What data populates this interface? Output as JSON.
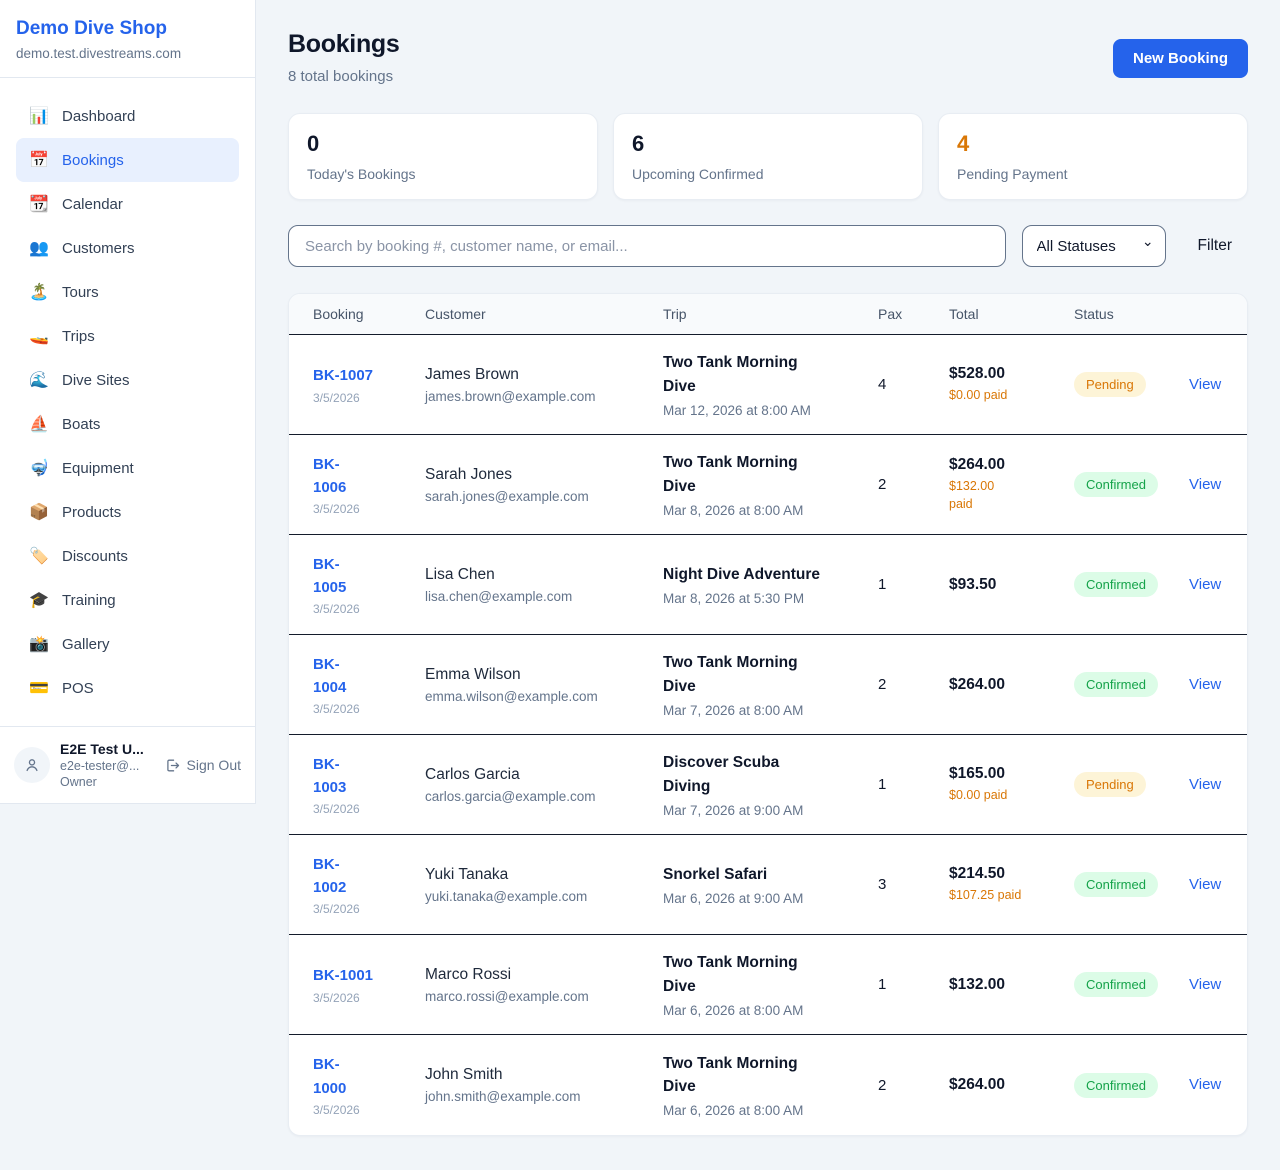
{
  "colors": {
    "accent_blue": "#2563eb",
    "pending_orange": "#d97706",
    "confirmed_green": "#16a34a",
    "page_background": "#f1f5f9"
  },
  "sidebar": {
    "shop_name": "Demo Dive Shop",
    "shop_domain": "demo.test.divestreams.com",
    "items": [
      {
        "slug": "dashboard",
        "icon": "📊",
        "label": "Dashboard",
        "active": false
      },
      {
        "slug": "bookings",
        "icon": "📅",
        "label": "Bookings",
        "active": true
      },
      {
        "slug": "calendar",
        "icon": "📆",
        "label": "Calendar",
        "active": false
      },
      {
        "slug": "customers",
        "icon": "👥",
        "label": "Customers",
        "active": false
      },
      {
        "slug": "tours",
        "icon": "🏝️",
        "label": "Tours",
        "active": false
      },
      {
        "slug": "trips",
        "icon": "🚤",
        "label": "Trips",
        "active": false
      },
      {
        "slug": "dive-sites",
        "icon": "🌊",
        "label": "Dive Sites",
        "active": false
      },
      {
        "slug": "boats",
        "icon": "⛵",
        "label": "Boats",
        "active": false
      },
      {
        "slug": "equipment",
        "icon": "🤿",
        "label": "Equipment",
        "active": false
      },
      {
        "slug": "products",
        "icon": "📦",
        "label": "Products",
        "active": false
      },
      {
        "slug": "discounts",
        "icon": "🏷️",
        "label": "Discounts",
        "active": false
      },
      {
        "slug": "training",
        "icon": "🎓",
        "label": "Training",
        "active": false
      },
      {
        "slug": "gallery",
        "icon": "📸",
        "label": "Gallery",
        "active": false
      },
      {
        "slug": "pos",
        "icon": "💳",
        "label": "POS",
        "active": false
      }
    ],
    "user": {
      "name": "E2E Test U...",
      "email": "e2e-tester@...",
      "role": "Owner",
      "signout_label": "Sign Out"
    }
  },
  "header": {
    "title": "Bookings",
    "subtitle": "8 total bookings",
    "new_booking_label": "New Booking"
  },
  "stats": {
    "0": {
      "value": "0",
      "label": "Today's Bookings"
    },
    "1": {
      "value": "6",
      "label": "Upcoming Confirmed"
    },
    "2": {
      "value": "4",
      "label": "Pending Payment"
    }
  },
  "filters": {
    "search_placeholder": "Search by booking #, customer name, or email...",
    "status_selected": "All Statuses",
    "filter_label": "Filter"
  },
  "table": {
    "columns": {
      "0": "Booking",
      "1": "Customer",
      "2": "Trip",
      "3": "Pax",
      "4": "Total",
      "5": "Status"
    },
    "rows": [
      {
        "id": "BK-1007",
        "booked_date": "3/5/2026",
        "customer_name": "James Brown",
        "customer_email": "james.brown@example.com",
        "trip_name": "Two Tank Morning\nDive",
        "trip_date": "Mar 12, 2026 at 8:00 AM",
        "pax": "4",
        "total": "$528.00",
        "paid": "$0.00 paid",
        "status": "Pending",
        "status_type": "pending",
        "view_label": "View"
      },
      {
        "id": "BK-\n1006",
        "booked_date": "3/5/2026",
        "customer_name": "Sarah Jones",
        "customer_email": "sarah.jones@example.com",
        "trip_name": "Two Tank Morning\nDive",
        "trip_date": "Mar 8, 2026 at 8:00 AM",
        "pax": "2",
        "total": "$264.00",
        "paid": "$132.00\npaid",
        "status": "Confirmed",
        "status_type": "confirmed",
        "view_label": "View"
      },
      {
        "id": "BK-\n1005",
        "booked_date": "3/5/2026",
        "customer_name": "Lisa Chen",
        "customer_email": "lisa.chen@example.com",
        "trip_name": "Night Dive Adventure",
        "trip_date": "Mar 8, 2026 at 5:30 PM",
        "pax": "1",
        "total": "$93.50",
        "paid": "",
        "status": "Confirmed",
        "status_type": "confirmed",
        "view_label": "View"
      },
      {
        "id": "BK-\n1004",
        "booked_date": "3/5/2026",
        "customer_name": "Emma Wilson",
        "customer_email": "emma.wilson@example.com",
        "trip_name": "Two Tank Morning\nDive",
        "trip_date": "Mar 7, 2026 at 8:00 AM",
        "pax": "2",
        "total": "$264.00",
        "paid": "",
        "status": "Confirmed",
        "status_type": "confirmed",
        "view_label": "View"
      },
      {
        "id": "BK-\n1003",
        "booked_date": "3/5/2026",
        "customer_name": "Carlos Garcia",
        "customer_email": "carlos.garcia@example.com",
        "trip_name": "Discover Scuba\nDiving",
        "trip_date": "Mar 7, 2026 at 9:00 AM",
        "pax": "1",
        "total": "$165.00",
        "paid": "$0.00 paid",
        "status": "Pending",
        "status_type": "pending",
        "view_label": "View"
      },
      {
        "id": "BK-\n1002",
        "booked_date": "3/5/2026",
        "customer_name": "Yuki Tanaka",
        "customer_email": "yuki.tanaka@example.com",
        "trip_name": "Snorkel Safari",
        "trip_date": "Mar 6, 2026 at 9:00 AM",
        "pax": "3",
        "total": "$214.50",
        "paid": "$107.25 paid",
        "status": "Confirmed",
        "status_type": "confirmed",
        "view_label": "View"
      },
      {
        "id": "BK-1001",
        "booked_date": "3/5/2026",
        "customer_name": "Marco Rossi",
        "customer_email": "marco.rossi@example.com",
        "trip_name": "Two Tank Morning\nDive",
        "trip_date": "Mar 6, 2026 at 8:00 AM",
        "pax": "1",
        "total": "$132.00",
        "paid": "",
        "status": "Confirmed",
        "status_type": "confirmed",
        "view_label": "View"
      },
      {
        "id": "BK-\n1000",
        "booked_date": "3/5/2026",
        "customer_name": "John Smith",
        "customer_email": "john.smith@example.com",
        "trip_name": "Two Tank Morning\nDive",
        "trip_date": "Mar 6, 2026 at 8:00 AM",
        "pax": "2",
        "total": "$264.00",
        "paid": "",
        "status": "Confirmed",
        "status_type": "confirmed",
        "view_label": "View"
      }
    ]
  }
}
